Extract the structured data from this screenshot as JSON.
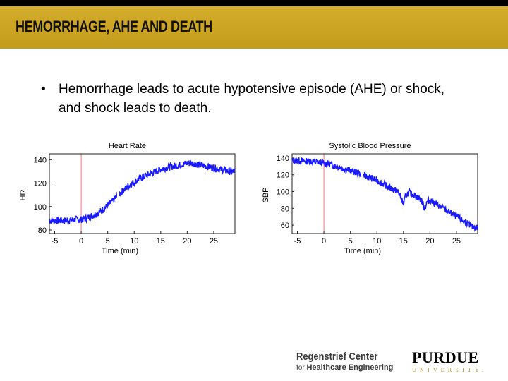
{
  "slide": {
    "title": "HEMORRHAGE, AHE AND DEATH",
    "bullet_marker": "•",
    "bullet_text": "Hemorrhage leads to acute hypotensive episode (AHE) or shock, and shock leads to death."
  },
  "colors": {
    "banner": "#c9a21f",
    "topbar": "#000000",
    "series": "#1a1aff",
    "marker_line": "#e87878"
  },
  "chart_data": [
    {
      "type": "line",
      "title": "Heart Rate",
      "xlabel": "Time (min)",
      "ylabel": "HR",
      "xlim": [
        -6,
        29
      ],
      "ylim": [
        77,
        145
      ],
      "xticks": [
        -5,
        0,
        5,
        10,
        15,
        20,
        25
      ],
      "yticks": [
        80,
        100,
        120,
        140
      ],
      "event_x": 0,
      "series": [
        {
          "name": "HR",
          "x": [
            -6,
            -5,
            -3,
            -1,
            0,
            1,
            2,
            3,
            4,
            5,
            6,
            7,
            8,
            9,
            10,
            11,
            12,
            13,
            14,
            15,
            16,
            17,
            18,
            19,
            20,
            21,
            22,
            23,
            24,
            25,
            26,
            27,
            28,
            29
          ],
          "y": [
            88,
            88,
            88,
            89,
            89,
            90,
            92,
            94,
            97,
            101,
            105,
            110,
            114,
            118,
            121,
            124,
            126,
            128,
            130,
            132,
            133,
            134,
            135,
            136,
            137,
            137,
            136,
            135,
            134,
            133,
            132,
            131,
            130,
            130
          ],
          "noise": 3
        }
      ]
    },
    {
      "type": "line",
      "title": "Systolic Blood Pressure",
      "xlabel": "Time (min)",
      "ylabel": "SBP",
      "xlim": [
        -6,
        29
      ],
      "ylim": [
        50,
        145
      ],
      "xticks": [
        -5,
        0,
        5,
        10,
        15,
        20,
        25
      ],
      "yticks": [
        60,
        80,
        100,
        120,
        140
      ],
      "event_x": 0,
      "series": [
        {
          "name": "SBP",
          "x": [
            -6,
            -5,
            -3,
            -1,
            0,
            1,
            2,
            3,
            4,
            5,
            6,
            7,
            8,
            9,
            10,
            11,
            12,
            13,
            14,
            14.5,
            15,
            15.5,
            16,
            17,
            18,
            18.5,
            19,
            19.5,
            20,
            21,
            22,
            23,
            24,
            25,
            26,
            27,
            28,
            29
          ],
          "y": [
            137,
            137,
            136,
            135,
            134,
            133,
            131,
            129,
            127,
            125,
            123,
            121,
            118,
            116,
            113,
            110,
            106,
            103,
            100,
            93,
            85,
            96,
            99,
            96,
            92,
            88,
            80,
            88,
            90,
            86,
            82,
            78,
            74,
            70,
            66,
            62,
            58,
            57
          ],
          "noise": 4
        }
      ]
    }
  ],
  "logos": {
    "regenstrief_line1": "Regenstrief Center",
    "regenstrief_line2_prefix": "for",
    "regenstrief_line2_main": "Healthcare Engineering",
    "purdue_line1": "PURDUE",
    "purdue_line2": "UNIVERSITY."
  }
}
